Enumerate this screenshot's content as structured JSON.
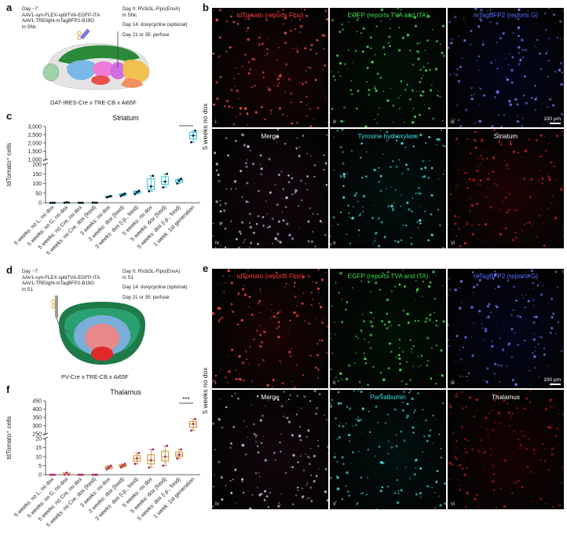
{
  "panels": {
    "a": {
      "label": "a",
      "protocol_left": [
        "Day −7:",
        "AAV1-syn-FLEX-splitTVA-EGFP-tTA",
        "AAV1-TREtight-mTagBFP2-B19G",
        "in SNc"
      ],
      "protocol_right": [
        "Day 0: RVΔGL-Flpo(EnvA)",
        "in SNc",
        "Day 14: doxycycline (optional)",
        "Day 21 or 35: perfuse"
      ],
      "mouse_line": "DAT-IRES-Cre x TRE-CB x Ai65F"
    },
    "b": {
      "label": "b",
      "row_label": "5 weeks no dox",
      "tiles": [
        {
          "label": "tdTomato (reports Flpo)",
          "num": "i",
          "color": "#ff3b3b",
          "dot": "#ff5050",
          "bg": "#1a0303"
        },
        {
          "label": "EGFP (reports TVA and tTA)",
          "num": "ii",
          "color": "#3ddc4f",
          "dot": "#5ef06a",
          "bg": "#021005"
        },
        {
          "label": "mTagBFP2 (reports G)",
          "num": "iii",
          "color": "#5a6bff",
          "dot": "#6f7dff",
          "bg": "#03041a",
          "scale": "100 µm"
        },
        {
          "label": "Merge",
          "num": "iv",
          "color": "#ffffff",
          "dot": "#e8c8ff",
          "bg": "#12060c"
        },
        {
          "label": "Tyrosine hydroxylase",
          "num": "v",
          "color": "#3fe0e0",
          "dot": "#56e8e8",
          "bg": "#02110f"
        },
        {
          "label": "Striatum",
          "num": "vi",
          "color": "#ffffff",
          "dot": "#c02020",
          "bg": "#1c0303"
        }
      ]
    },
    "c": {
      "label": "c",
      "title": "Striatum",
      "ylabel": "tdTomato⁺ cells",
      "significance": "***"
    },
    "d": {
      "label": "d",
      "protocol_left": [
        "Day −7:",
        "AAV1-syn-FLEX-splitTVA-EGFP-tTA",
        "AAV1-TREtight-mTagBFP2-B19G",
        "in S1"
      ],
      "protocol_right": [
        "Day 0: RVΔGL-Flpo(EnvA)",
        "in S1",
        "Day 14: doxycycline (optional)",
        "Day 21 or 35: perfuse"
      ],
      "mouse_line": "PV-Cre x TRE-CB x Ai65F"
    },
    "e": {
      "label": "e",
      "row_label": "5 weeks no dox",
      "tiles": [
        {
          "label": "tdTomato (reports Flpo)",
          "num": "i",
          "color": "#ff3b3b",
          "dot": "#ff4848",
          "bg": "#1a0303"
        },
        {
          "label": "EGFP (reports TVA and tTA)",
          "num": "ii",
          "color": "#3ddc4f",
          "dot": "#4fe85c",
          "bg": "#021005"
        },
        {
          "label": "mTagBFP2 (reports G)",
          "num": "iii",
          "color": "#5a6bff",
          "dot": "#6f7dff",
          "bg": "#03041a",
          "scale": "100 µm"
        },
        {
          "label": "Merge",
          "num": "iv",
          "color": "#ffffff",
          "dot": "#e0c0f0",
          "bg": "#12060c"
        },
        {
          "label": "Parvalbumin",
          "num": "v",
          "color": "#3fe0e0",
          "dot": "#56e8e8",
          "bg": "#02110f"
        },
        {
          "label": "Thalamus",
          "num": "vi",
          "color": "#ffffff",
          "dot": "#b01818",
          "bg": "#160202"
        }
      ]
    },
    "f": {
      "label": "f",
      "title": "Thalamus",
      "ylabel": "tdTomato⁺ cells",
      "significance": "***"
    }
  },
  "chart_data": [
    {
      "type": "box",
      "title": "Striatum",
      "ylabel": "tdTomato⁺ cells",
      "axis_break": true,
      "yticks": [
        0,
        50,
        100,
        150,
        200,
        1000,
        1500,
        2000,
        2500,
        3000
      ],
      "ytick_labels": [
        "0",
        "50",
        "100",
        "150",
        "200",
        "1,000",
        "1,500",
        "2,000",
        "2,500",
        "3,000"
      ],
      "box_color": "#22b8d8",
      "categories": [
        "5 weeks: no L, no dox",
        "5 weeks: no G, no dox",
        "5 weeks: no Cre, no dox",
        "5 weeks: no Cre, dox (food)",
        "3 weeks: no dox",
        "3 weeks: dox (food)",
        "3 weeks: dox (i.p., food)",
        "5 weeks: no dox",
        "5 weeks: dox (food)",
        "5 weeks: dox (i.p., food)",
        "1 week: 1st generation"
      ],
      "points": [
        [
          0,
          0,
          0
        ],
        [
          0,
          2,
          1
        ],
        [
          0,
          0,
          0
        ],
        [
          1,
          0,
          0
        ],
        [
          28,
          32,
          35
        ],
        [
          35,
          42,
          48
        ],
        [
          45,
          55,
          62
        ],
        [
          60,
          85,
          140
        ],
        [
          80,
          110,
          150
        ],
        [
          100,
          115,
          125
        ],
        [
          2050,
          2450,
          2750
        ]
      ],
      "box_stats": [
        [
          0,
          0,
          0,
          0,
          0
        ],
        [
          0,
          0,
          1,
          2,
          2
        ],
        [
          0,
          0,
          0,
          0,
          0
        ],
        [
          0,
          0,
          0,
          1,
          1
        ],
        [
          28,
          30,
          32,
          34,
          35
        ],
        [
          35,
          38,
          42,
          46,
          48
        ],
        [
          45,
          50,
          55,
          60,
          62
        ],
        [
          60,
          70,
          85,
          125,
          140
        ],
        [
          80,
          95,
          110,
          135,
          150
        ],
        [
          100,
          107,
          115,
          120,
          125
        ],
        [
          2050,
          2250,
          2450,
          2650,
          2750
        ]
      ]
    },
    {
      "type": "box",
      "title": "Thalamus",
      "ylabel": "tdTomato⁺ cells",
      "axis_break": true,
      "yticks": [
        0,
        5,
        10,
        15,
        20,
        250,
        300,
        350,
        400,
        450
      ],
      "ytick_labels": [
        "0",
        "5",
        "10",
        "15",
        "20",
        "250",
        "300",
        "350",
        "400",
        "450"
      ],
      "box_color": "#c08a1a",
      "point_color": "#b02080",
      "categories": [
        "5 weeks: no L, no dox",
        "5 weeks: no G, no dox",
        "5 weeks: no Cre, no dox",
        "5 weeks: no Cre, dox (food)",
        "3 weeks: no dox",
        "3 weeks: dox (food)",
        "3 weeks: dox (i.p., food)",
        "5 weeks: no dox",
        "5 weeks: dox (food)",
        "5 weeks: dox (i.p., food)",
        "1 week: 1st generation"
      ],
      "points": [
        [
          0,
          0,
          0
        ],
        [
          0,
          1,
          0
        ],
        [
          0,
          0,
          0
        ],
        [
          0,
          0,
          0
        ],
        [
          3,
          4,
          5
        ],
        [
          4,
          5,
          6
        ],
        [
          6,
          9,
          12
        ],
        [
          4,
          8,
          14
        ],
        [
          5,
          10,
          16
        ],
        [
          9,
          11,
          14
        ],
        [
          270,
          310,
          340
        ]
      ],
      "box_stats": [
        [
          0,
          0,
          0,
          0,
          0
        ],
        [
          0,
          0,
          0,
          1,
          1
        ],
        [
          0,
          0,
          0,
          0,
          0
        ],
        [
          0,
          0,
          0,
          0,
          0
        ],
        [
          3,
          3.5,
          4,
          4.5,
          5
        ],
        [
          4,
          4.5,
          5,
          5.5,
          6
        ],
        [
          6,
          7.5,
          9,
          10.5,
          12
        ],
        [
          4,
          6,
          8,
          11,
          14
        ],
        [
          5,
          7.5,
          10,
          13,
          16
        ],
        [
          9,
          10,
          11,
          12.5,
          14
        ],
        [
          270,
          290,
          310,
          325,
          340
        ]
      ]
    }
  ]
}
